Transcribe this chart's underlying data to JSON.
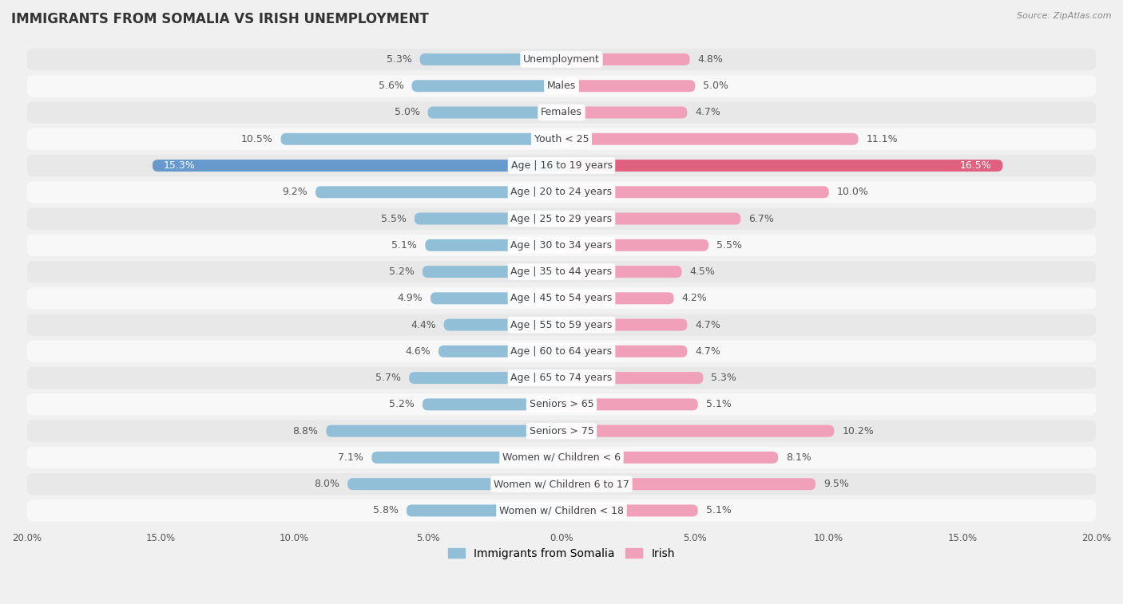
{
  "title": "IMMIGRANTS FROM SOMALIA VS IRISH UNEMPLOYMENT",
  "source": "Source: ZipAtlas.com",
  "categories": [
    "Unemployment",
    "Males",
    "Females",
    "Youth < 25",
    "Age | 16 to 19 years",
    "Age | 20 to 24 years",
    "Age | 25 to 29 years",
    "Age | 30 to 34 years",
    "Age | 35 to 44 years",
    "Age | 45 to 54 years",
    "Age | 55 to 59 years",
    "Age | 60 to 64 years",
    "Age | 65 to 74 years",
    "Seniors > 65",
    "Seniors > 75",
    "Women w/ Children < 6",
    "Women w/ Children 6 to 17",
    "Women w/ Children < 18"
  ],
  "somalia_values": [
    5.3,
    5.6,
    5.0,
    10.5,
    15.3,
    9.2,
    5.5,
    5.1,
    5.2,
    4.9,
    4.4,
    4.6,
    5.7,
    5.2,
    8.8,
    7.1,
    8.0,
    5.8
  ],
  "irish_values": [
    4.8,
    5.0,
    4.7,
    11.1,
    16.5,
    10.0,
    6.7,
    5.5,
    4.5,
    4.2,
    4.7,
    4.7,
    5.3,
    5.1,
    10.2,
    8.1,
    9.5,
    5.1
  ],
  "somalia_color": "#92bfd8",
  "irish_color": "#f0a0b8",
  "somalia_highlight_color": "#6699cc",
  "irish_highlight_color": "#e06080",
  "axis_max": 20.0,
  "bg_color": "#f0f0f0",
  "row_color_even": "#e8e8e8",
  "row_color_odd": "#f8f8f8",
  "label_fontsize": 9,
  "title_fontsize": 12,
  "source_fontsize": 8,
  "legend_fontsize": 10,
  "value_label_color": "#555555",
  "category_label_color": "#444444",
  "highlight_value_color": "#ffffff",
  "highlight_label_color": "#444444"
}
